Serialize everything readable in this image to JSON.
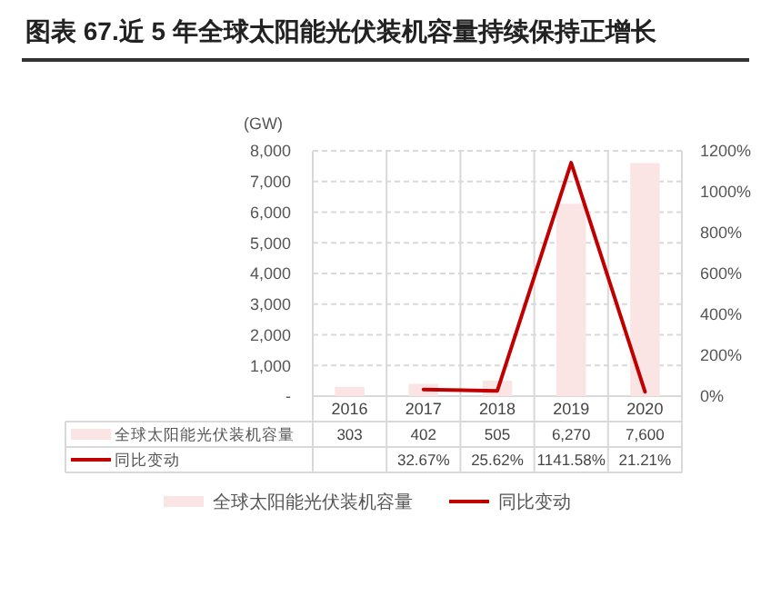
{
  "chart_data": {
    "type": "bar",
    "title": "图表 67.近 5 年全球太阳能光伏装机容量持续保持正增长",
    "ylabel": "(GW)",
    "categories": [
      "2016",
      "2017",
      "2018",
      "2019",
      "2020"
    ],
    "series": [
      {
        "name": "全球太阳能光伏装机容量",
        "color": "#fbe4e4",
        "values": [
          303,
          402,
          505,
          6270,
          7600
        ],
        "value_labels": [
          "303",
          "402",
          "505",
          "6,270",
          "7,600"
        ]
      },
      {
        "name": "同比变动",
        "type": "line",
        "axis": "y2",
        "color": "#c00000",
        "values": [
          null,
          32.67,
          25.62,
          1141.58,
          21.21
        ],
        "value_labels": [
          null,
          "32.67%",
          "25.62%",
          "1141.58%",
          "21.21%"
        ]
      }
    ],
    "ylim": [
      0,
      8000
    ],
    "yticks": [
      {
        "value": 0,
        "label": "-"
      },
      {
        "value": 1000,
        "label": "1,000"
      },
      {
        "value": 2000,
        "label": "2,000"
      },
      {
        "value": 3000,
        "label": "3,000"
      },
      {
        "value": 4000,
        "label": "4,000"
      },
      {
        "value": 5000,
        "label": "5,000"
      },
      {
        "value": 6000,
        "label": "6,000"
      },
      {
        "value": 7000,
        "label": "7,000"
      },
      {
        "value": 8000,
        "label": "8,000"
      }
    ],
    "y2lim": [
      0,
      1200
    ],
    "y2ticks": [
      {
        "value": 0,
        "label": "0%"
      },
      {
        "value": 200,
        "label": "200%"
      },
      {
        "value": 400,
        "label": "400%"
      },
      {
        "value": 600,
        "label": "600%"
      },
      {
        "value": 800,
        "label": "800%"
      },
      {
        "value": 1000,
        "label": "1000%"
      },
      {
        "value": 1200,
        "label": "1200%"
      }
    ],
    "grid": "y",
    "legend": "bottom",
    "marker": "none",
    "line_style": "solid"
  }
}
